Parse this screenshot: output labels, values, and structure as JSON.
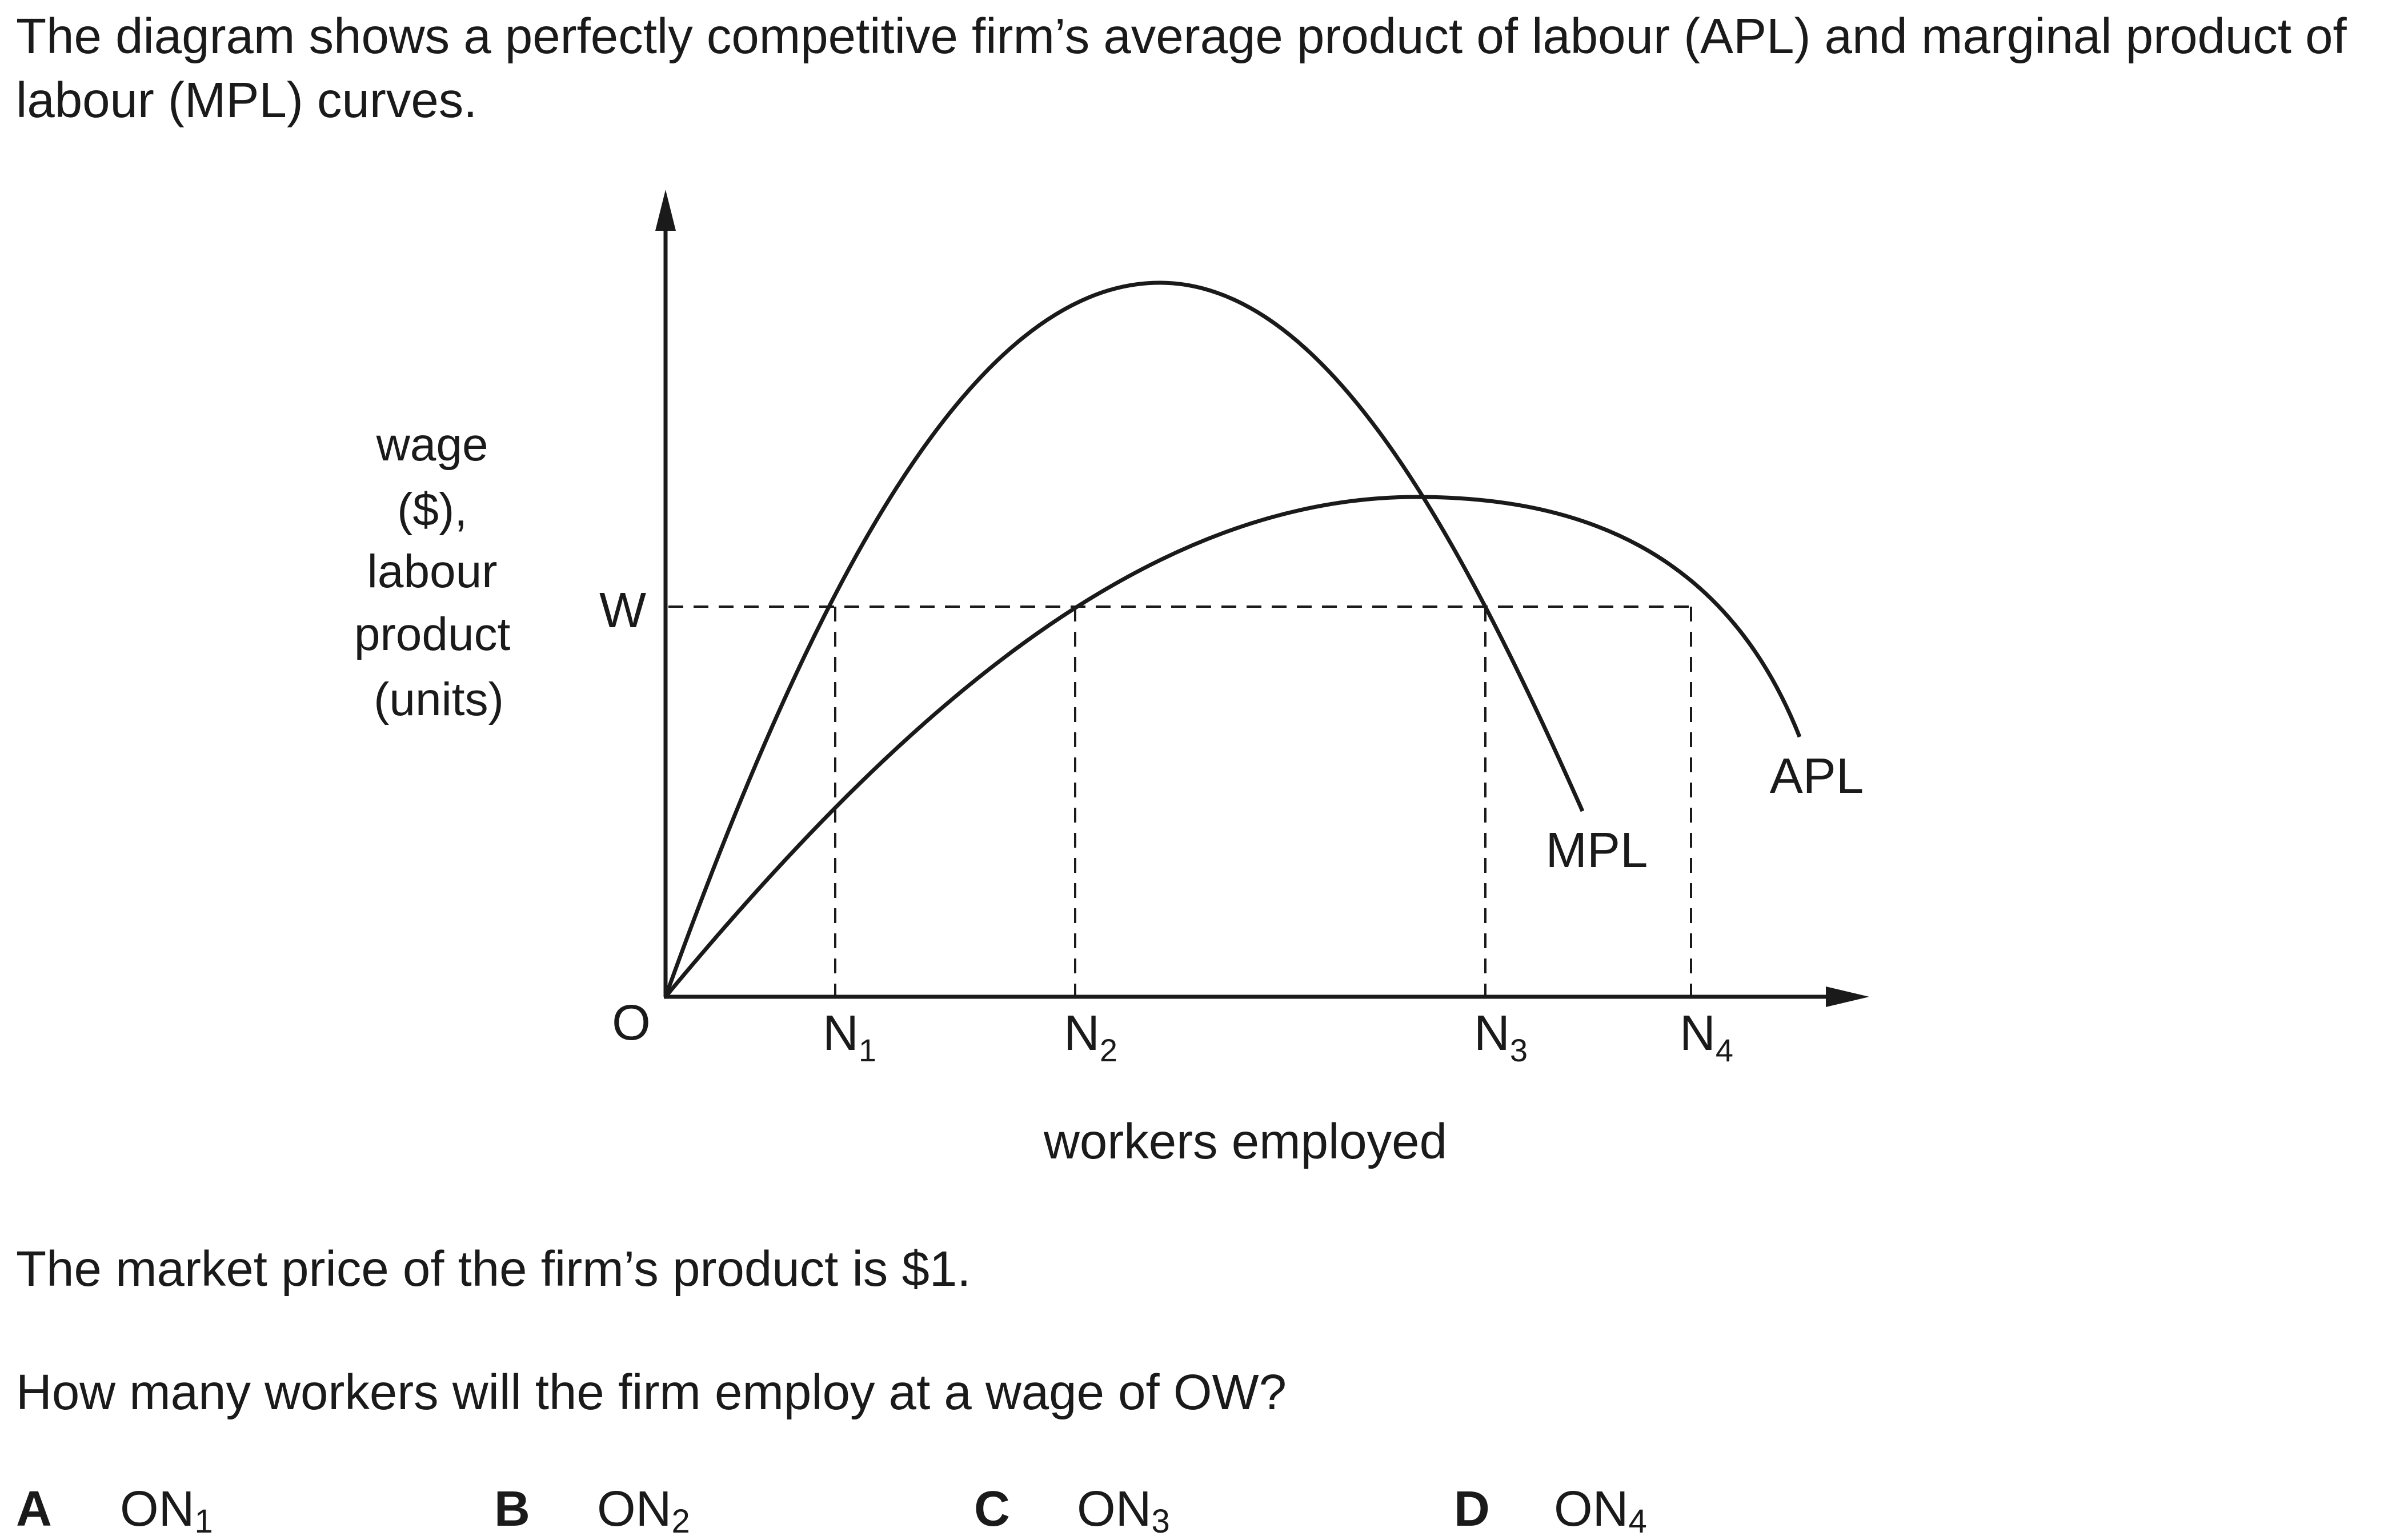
{
  "question": {
    "intro": "The diagram shows a perfectly competitive firm’s average product of labour (APL) and marginal product of labour (MPL) curves.",
    "price_statement": "The market price of the firm’s product is $1.",
    "prompt": "How many workers will the firm employ at a wage of OW?"
  },
  "diagram": {
    "y_axis_label_lines": [
      "wage",
      "($),",
      "labour",
      "product",
      "(units)"
    ],
    "x_axis_label": "workers employed",
    "origin_label": "O",
    "wage_label": "W",
    "points": [
      {
        "base": "N",
        "sub": "1"
      },
      {
        "base": "N",
        "sub": "2"
      },
      {
        "base": "N",
        "sub": "3"
      },
      {
        "base": "N",
        "sub": "4"
      }
    ],
    "curves": {
      "mpl": "MPL",
      "apl": "APL"
    }
  },
  "options": [
    {
      "letter": "A",
      "base": "ON",
      "sub": "1"
    },
    {
      "letter": "B",
      "base": "ON",
      "sub": "2"
    },
    {
      "letter": "C",
      "base": "ON",
      "sub": "3"
    },
    {
      "letter": "D",
      "base": "ON",
      "sub": "4"
    }
  ]
}
